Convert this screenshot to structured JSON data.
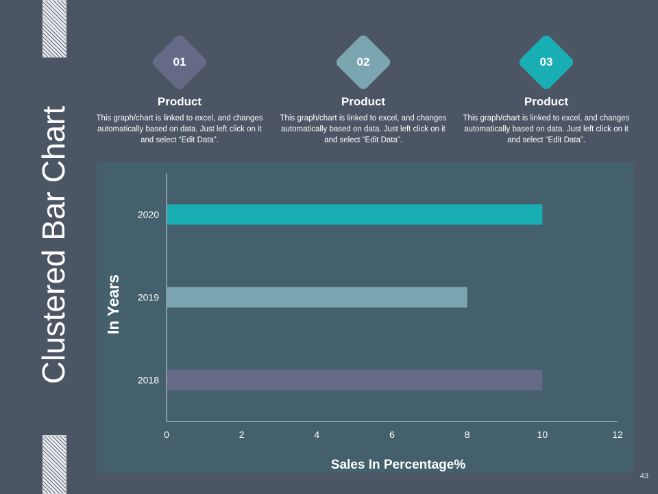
{
  "slide": {
    "title": "Clustered Bar Chart",
    "page_number": "43"
  },
  "cards": [
    {
      "number": "01",
      "title": "Product",
      "text": "This graph/chart is linked to excel, and changes automatically based on data. Just left click on it and select “Edit Data”.",
      "color": "#656a87"
    },
    {
      "number": "02",
      "title": "Product",
      "text": "This graph/chart is linked to excel, and changes automatically based on data. Just left click on it and select “Edit Data”.",
      "color": "#7ba5b1"
    },
    {
      "number": "03",
      "title": "Product",
      "text": "This graph/chart is linked to excel, and changes automatically based on data. Just left click on it and select “Edit Data”.",
      "color": "#19adb4"
    }
  ],
  "chart_data": {
    "type": "bar",
    "orientation": "horizontal",
    "categories": [
      "2018",
      "2019",
      "2020"
    ],
    "values": [
      10,
      8,
      10
    ],
    "colors": [
      "#656a87",
      "#7ba5b1",
      "#19adb4"
    ],
    "title": "",
    "xlabel": "Sales In Percentage%",
    "ylabel": "In Years",
    "xlim": [
      0,
      12
    ],
    "xticks": [
      0,
      2,
      4,
      6,
      8,
      10,
      12
    ],
    "grid": false,
    "legend": "none"
  }
}
